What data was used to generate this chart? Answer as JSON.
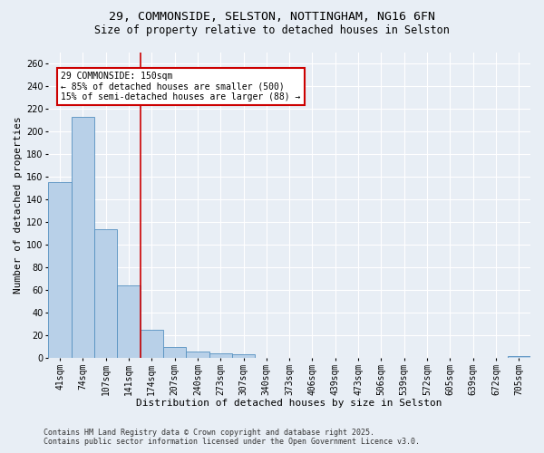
{
  "title_line1": "29, COMMONSIDE, SELSTON, NOTTINGHAM, NG16 6FN",
  "title_line2": "Size of property relative to detached houses in Selston",
  "xlabel": "Distribution of detached houses by size in Selston",
  "ylabel": "Number of detached properties",
  "categories": [
    "41sqm",
    "74sqm",
    "107sqm",
    "141sqm",
    "174sqm",
    "207sqm",
    "240sqm",
    "273sqm",
    "307sqm",
    "340sqm",
    "373sqm",
    "406sqm",
    "439sqm",
    "473sqm",
    "506sqm",
    "539sqm",
    "572sqm",
    "605sqm",
    "639sqm",
    "672sqm",
    "705sqm"
  ],
  "values": [
    155,
    213,
    114,
    64,
    25,
    10,
    6,
    4,
    3,
    0,
    0,
    0,
    0,
    0,
    0,
    0,
    0,
    0,
    0,
    0,
    2
  ],
  "bar_color": "#b8d0e8",
  "bar_edge_color": "#5590c0",
  "vline_color": "#cc0000",
  "annotation_text_line1": "29 COMMONSIDE: 150sqm",
  "annotation_text_line2": "← 85% of detached houses are smaller (500)",
  "annotation_text_line3": "15% of semi-detached houses are larger (88) →",
  "annotation_box_color": "#cc0000",
  "annotation_fill_color": "#ffffff",
  "ylim": [
    0,
    270
  ],
  "yticks": [
    0,
    20,
    40,
    60,
    80,
    100,
    120,
    140,
    160,
    180,
    200,
    220,
    240,
    260
  ],
  "footer_line1": "Contains HM Land Registry data © Crown copyright and database right 2025.",
  "footer_line2": "Contains public sector information licensed under the Open Government Licence v3.0.",
  "bg_color": "#e8eef5",
  "plot_bg_color": "#e8eef5",
  "grid_color": "#ffffff",
  "title_fontsize": 9.5,
  "subtitle_fontsize": 8.5,
  "axis_label_fontsize": 8,
  "tick_fontsize": 7,
  "annotation_fontsize": 7,
  "footer_fontsize": 6
}
